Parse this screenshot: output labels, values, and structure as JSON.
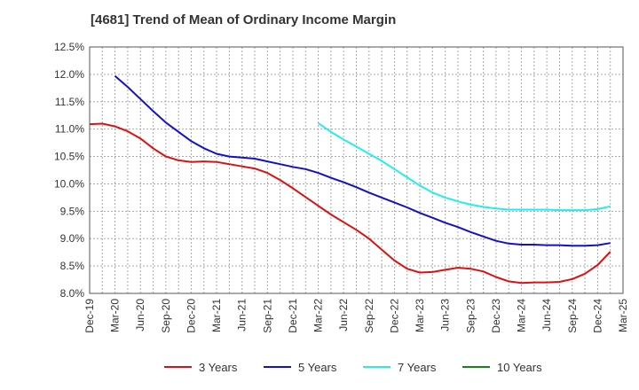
{
  "chart_data": {
    "type": "line",
    "title": "[4681]  Trend of Mean of Ordinary Income Margin",
    "xlabel": "",
    "ylabel": "",
    "x_labels": [
      "Dec-19",
      "Mar-20",
      "Jun-20",
      "Sep-20",
      "Dec-20",
      "Mar-21",
      "Jun-21",
      "Sep-21",
      "Dec-21",
      "Mar-22",
      "Jun-22",
      "Sep-22",
      "Dec-22",
      "Mar-23",
      "Jun-23",
      "Sep-23",
      "Dec-23",
      "Mar-24",
      "Jun-24",
      "Sep-24",
      "Dec-24",
      "Mar-25"
    ],
    "y_ticks": [
      "8.0%",
      "8.5%",
      "9.0%",
      "9.5%",
      "10.0%",
      "10.5%",
      "11.0%",
      "11.5%",
      "12.0%",
      "12.5%"
    ],
    "ylim": [
      8.0,
      12.5
    ],
    "y_unit": "%",
    "grid": true,
    "legend_position": "bottom",
    "series": [
      {
        "name": "3 Years",
        "color": "#dd1111",
        "values": [
          [
            0,
            11.09
          ],
          [
            1,
            11.1
          ],
          [
            2,
            11.05
          ],
          [
            3,
            10.96
          ],
          [
            4,
            10.83
          ],
          [
            5,
            10.65
          ],
          [
            6,
            10.5
          ],
          [
            7,
            10.43
          ],
          [
            8,
            10.4
          ],
          [
            9,
            10.41
          ],
          [
            10,
            10.4
          ],
          [
            11,
            10.36
          ],
          [
            12,
            10.32
          ],
          [
            13,
            10.28
          ],
          [
            14,
            10.2
          ],
          [
            15,
            10.07
          ],
          [
            16,
            9.92
          ],
          [
            17,
            9.76
          ],
          [
            18,
            9.6
          ],
          [
            19,
            9.44
          ],
          [
            20,
            9.3
          ],
          [
            21,
            9.16
          ],
          [
            22,
            9.0
          ],
          [
            23,
            8.8
          ],
          [
            24,
            8.6
          ],
          [
            25,
            8.45
          ],
          [
            26,
            8.38
          ],
          [
            27,
            8.39
          ],
          [
            28,
            8.43
          ],
          [
            29,
            8.47
          ],
          [
            30,
            8.45
          ],
          [
            31,
            8.4
          ],
          [
            32,
            8.3
          ],
          [
            33,
            8.22
          ],
          [
            34,
            8.19
          ],
          [
            35,
            8.2
          ],
          [
            36,
            8.2
          ],
          [
            37,
            8.21
          ],
          [
            38,
            8.26
          ],
          [
            39,
            8.36
          ],
          [
            40,
            8.52
          ],
          [
            41,
            8.76
          ]
        ]
      },
      {
        "name": "5 Years",
        "color": "#1111cc",
        "values": [
          [
            2,
            11.97
          ],
          [
            3,
            11.77
          ],
          [
            4,
            11.55
          ],
          [
            5,
            11.33
          ],
          [
            6,
            11.12
          ],
          [
            7,
            10.95
          ],
          [
            8,
            10.78
          ],
          [
            9,
            10.65
          ],
          [
            10,
            10.55
          ],
          [
            11,
            10.5
          ],
          [
            12,
            10.48
          ],
          [
            13,
            10.46
          ],
          [
            14,
            10.41
          ],
          [
            15,
            10.36
          ],
          [
            16,
            10.31
          ],
          [
            17,
            10.27
          ],
          [
            18,
            10.2
          ],
          [
            19,
            10.11
          ],
          [
            20,
            10.03
          ],
          [
            21,
            9.94
          ],
          [
            22,
            9.84
          ],
          [
            23,
            9.75
          ],
          [
            24,
            9.66
          ],
          [
            25,
            9.57
          ],
          [
            26,
            9.47
          ],
          [
            27,
            9.38
          ],
          [
            28,
            9.29
          ],
          [
            29,
            9.21
          ],
          [
            30,
            9.12
          ],
          [
            31,
            9.04
          ],
          [
            32,
            8.96
          ],
          [
            33,
            8.91
          ],
          [
            34,
            8.89
          ],
          [
            35,
            8.89
          ],
          [
            36,
            8.88
          ],
          [
            37,
            8.88
          ],
          [
            38,
            8.87
          ],
          [
            39,
            8.87
          ],
          [
            40,
            8.88
          ],
          [
            41,
            8.92
          ]
        ]
      },
      {
        "name": "7 Years",
        "color": "#22eeee",
        "values": [
          [
            18,
            11.11
          ],
          [
            19,
            10.95
          ],
          [
            20,
            10.81
          ],
          [
            21,
            10.68
          ],
          [
            22,
            10.55
          ],
          [
            23,
            10.42
          ],
          [
            24,
            10.27
          ],
          [
            25,
            10.12
          ],
          [
            26,
            9.97
          ],
          [
            27,
            9.84
          ],
          [
            28,
            9.75
          ],
          [
            29,
            9.68
          ],
          [
            30,
            9.62
          ],
          [
            31,
            9.58
          ],
          [
            32,
            9.55
          ],
          [
            33,
            9.53
          ],
          [
            34,
            9.53
          ],
          [
            35,
            9.53
          ],
          [
            36,
            9.53
          ],
          [
            37,
            9.52
          ],
          [
            38,
            9.52
          ],
          [
            39,
            9.52
          ],
          [
            40,
            9.54
          ],
          [
            41,
            9.59
          ]
        ]
      },
      {
        "name": "10 Years",
        "color": "#118811",
        "values": []
      }
    ]
  }
}
